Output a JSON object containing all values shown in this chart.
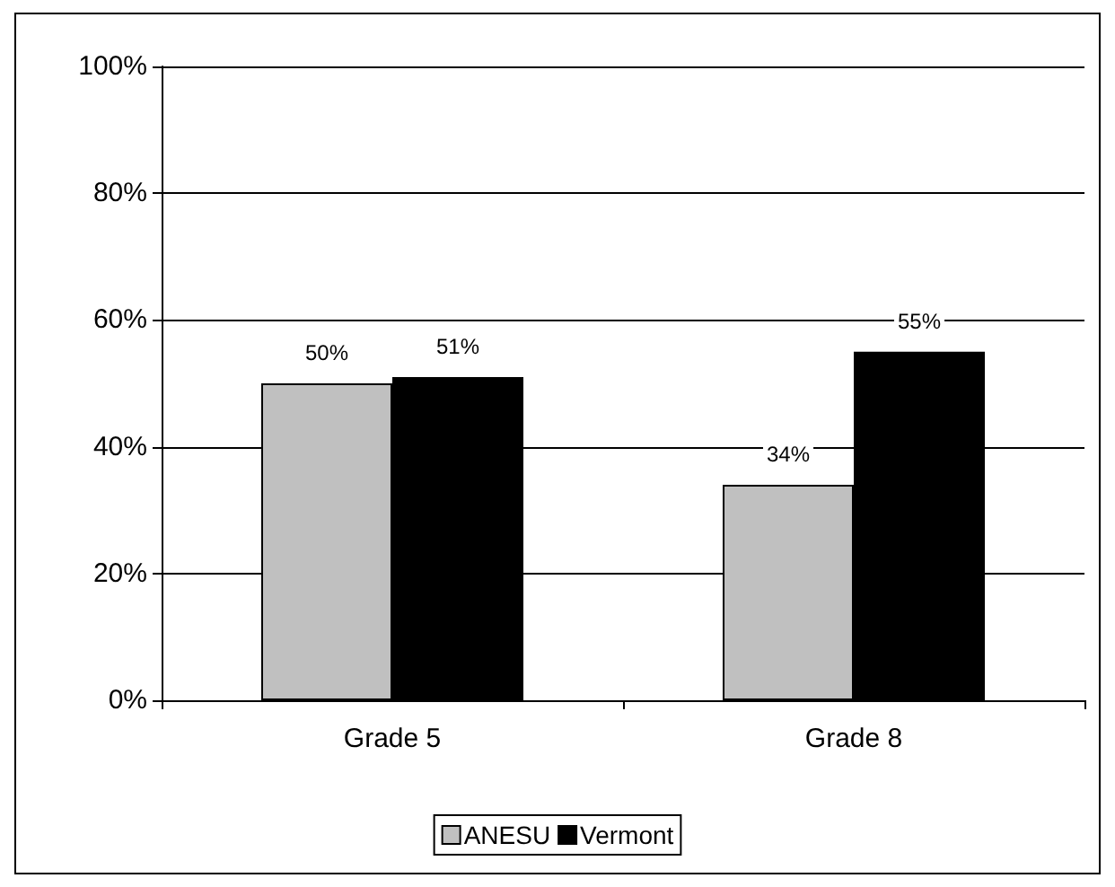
{
  "chart_data": {
    "type": "bar",
    "categories": [
      "Grade 5",
      "Grade 8"
    ],
    "series": [
      {
        "name": "ANESU",
        "color": "#c0c0c0",
        "values": [
          50,
          34
        ],
        "value_labels": [
          "50%",
          "34%"
        ]
      },
      {
        "name": "Vermont",
        "color": "#000000",
        "values": [
          51,
          55
        ],
        "value_labels": [
          "51%",
          "55%"
        ]
      }
    ],
    "ylim": [
      0,
      100
    ],
    "yticks": [
      {
        "value": 0,
        "label": "0%"
      },
      {
        "value": 20,
        "label": "20%"
      },
      {
        "value": 40,
        "label": "40%"
      },
      {
        "value": 60,
        "label": "60%"
      },
      {
        "value": 80,
        "label": "80%"
      },
      {
        "value": 100,
        "label": "100%"
      }
    ],
    "grid": "y",
    "legend": "bottom"
  }
}
